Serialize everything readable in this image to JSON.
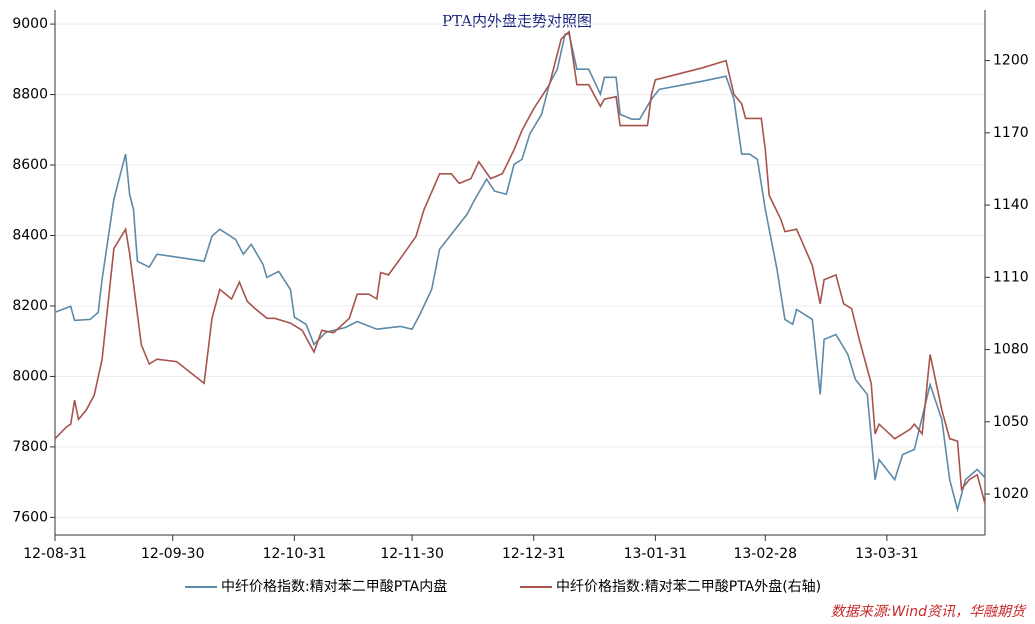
{
  "chart_data": {
    "type": "line",
    "title": "PTA内外盘走势对照图",
    "source": "数据来源:Wind资讯，华融期货",
    "xlim": [
      "12-08-31",
      "13-04-25"
    ],
    "xticks": [
      "12-08-31",
      "12-09-30",
      "12-10-31",
      "12-11-30",
      "12-12-31",
      "13-01-31",
      "13-02-28",
      "13-03-31"
    ],
    "ylim": [
      7550,
      9040
    ],
    "yticks": [
      7600,
      7800,
      8000,
      8200,
      8400,
      8600,
      8800,
      9000
    ],
    "y2lim": [
      1003,
      1221
    ],
    "y2ticks": [
      1020,
      1050,
      1080,
      1110,
      1140,
      1170,
      1200
    ],
    "grid": true,
    "legend": "bottom",
    "series": [
      {
        "name": "中纤价格指数:精对苯二甲酸PTA内盘",
        "color": "#5d8aa8",
        "x": [
          "12-08-31",
          "12-09-04",
          "12-09-05",
          "12-09-09",
          "12-09-11",
          "12-09-12",
          "12-09-15",
          "12-09-18",
          "12-09-19",
          "12-09-20",
          "12-09-21",
          "12-09-24",
          "12-09-26",
          "12-10-08",
          "12-10-10",
          "12-10-12",
          "12-10-16",
          "12-10-18",
          "12-10-20",
          "12-10-23",
          "12-10-24",
          "12-10-27",
          "12-10-30",
          "12-10-31",
          "12-11-03",
          "12-11-05",
          "12-11-08",
          "12-11-13",
          "12-11-16",
          "12-11-21",
          "12-11-27",
          "12-11-30",
          "12-12-02",
          "12-12-05",
          "12-12-07",
          "12-12-11",
          "12-12-14",
          "12-12-16",
          "12-12-19",
          "12-12-21",
          "12-12-24",
          "12-12-26",
          "12-12-28",
          "12-12-30",
          "13-01-02",
          "13-01-04",
          "13-01-06",
          "13-01-08",
          "13-01-09",
          "13-01-11",
          "13-01-14",
          "13-01-17",
          "13-01-18",
          "13-01-21",
          "13-01-22",
          "13-01-25",
          "13-01-27",
          "13-01-30",
          "13-02-01",
          "13-02-12",
          "13-02-18",
          "13-02-20",
          "13-02-22",
          "13-02-24",
          "13-02-26",
          "13-02-28",
          "13-03-03",
          "13-03-05",
          "13-03-07",
          "13-03-08",
          "13-03-12",
          "13-03-14",
          "13-03-15",
          "13-03-18",
          "13-03-21",
          "13-03-23",
          "13-03-26",
          "13-03-28",
          "13-03-29",
          "13-04-02",
          "13-04-04",
          "13-04-07",
          "13-04-11",
          "13-04-14",
          "13-04-16",
          "13-04-18",
          "13-04-20",
          "13-04-23",
          "13-04-25"
        ],
        "values": [
          8182,
          8199,
          8159,
          8162,
          8182,
          8276,
          8503,
          8631,
          8517,
          8474,
          8327,
          8310,
          8347,
          8327,
          8398,
          8418,
          8389,
          8347,
          8375,
          8318,
          8281,
          8298,
          8247,
          8168,
          8148,
          8091,
          8125,
          8139,
          8156,
          8134,
          8142,
          8134,
          8176,
          8247,
          8361,
          8418,
          8460,
          8503,
          8560,
          8526,
          8517,
          8602,
          8616,
          8688,
          8744,
          8830,
          8872,
          8972,
          8972,
          8872,
          8872,
          8801,
          8849,
          8849,
          8744,
          8730,
          8730,
          8787,
          8815,
          8838,
          8852,
          8787,
          8631,
          8631,
          8616,
          8474,
          8304,
          8162,
          8148,
          8190,
          8162,
          7949,
          8105,
          8119,
          8063,
          7991,
          7949,
          7707,
          7764,
          7707,
          7778,
          7793,
          7977,
          7878,
          7707,
          7622,
          7707,
          7736,
          7713
        ]
      },
      {
        "name": "中纤价格指数:精对苯二甲酸PTA外盘(右轴)",
        "color": "#a8534d",
        "axis": "y2",
        "x": [
          "12-08-31",
          "12-09-03",
          "12-09-04",
          "12-09-05",
          "12-09-06",
          "12-09-08",
          "12-09-10",
          "12-09-12",
          "12-09-15",
          "12-09-18",
          "12-09-19",
          "12-09-22",
          "12-09-24",
          "12-09-26",
          "12-10-01",
          "12-10-08",
          "12-10-10",
          "12-10-12",
          "12-10-15",
          "12-10-17",
          "12-10-19",
          "12-10-21",
          "12-10-24",
          "12-10-26",
          "12-10-30",
          "12-11-02",
          "12-11-05",
          "12-11-07",
          "12-11-10",
          "12-11-14",
          "12-11-16",
          "12-11-19",
          "12-11-21",
          "12-11-22",
          "12-11-24",
          "12-11-28",
          "12-12-01",
          "12-12-03",
          "12-12-07",
          "12-12-10",
          "12-12-12",
          "12-12-15",
          "12-12-17",
          "12-12-20",
          "12-12-23",
          "12-12-26",
          "12-12-28",
          "12-12-31",
          "13-01-04",
          "13-01-07",
          "13-01-09",
          "13-01-11",
          "13-01-14",
          "13-01-17",
          "13-01-18",
          "13-01-21",
          "13-01-22",
          "13-01-29",
          "13-01-30",
          "13-01-31",
          "13-02-12",
          "13-02-18",
          "13-02-20",
          "13-02-22",
          "13-02-23",
          "13-02-27",
          "13-02-28",
          "13-03-01",
          "13-03-04",
          "13-03-05",
          "13-03-08",
          "13-03-12",
          "13-03-14",
          "13-03-15",
          "13-03-18",
          "13-03-20",
          "13-03-22",
          "13-03-24",
          "13-03-27",
          "13-03-28",
          "13-03-29",
          "13-04-02",
          "13-04-04",
          "13-04-06",
          "13-04-07",
          "13-04-09",
          "13-04-11",
          "13-04-14",
          "13-04-16",
          "13-04-18",
          "13-04-19",
          "13-04-21",
          "13-04-23",
          "13-04-25"
        ],
        "values": [
          1043,
          1048,
          1049,
          1059,
          1051,
          1055,
          1061,
          1076,
          1122,
          1130,
          1120,
          1082,
          1074,
          1076,
          1075,
          1066,
          1093,
          1105,
          1101,
          1108,
          1100,
          1097,
          1093,
          1093,
          1091,
          1088,
          1079,
          1088,
          1087,
          1093,
          1103,
          1103,
          1101,
          1112,
          1111,
          1120,
          1127,
          1138,
          1153,
          1153,
          1149,
          1151,
          1158,
          1151,
          1153,
          1163,
          1171,
          1180,
          1190,
          1209,
          1212,
          1190,
          1190,
          1181,
          1184,
          1185,
          1173,
          1173,
          1186,
          1192,
          1197,
          1200,
          1186,
          1182,
          1176,
          1176,
          1163,
          1144,
          1134,
          1129,
          1130,
          1115,
          1099,
          1109,
          1111,
          1099,
          1097,
          1084,
          1066,
          1045,
          1049,
          1043,
          1045,
          1047,
          1049,
          1045,
          1078,
          1055,
          1043,
          1042,
          1022,
          1026,
          1028,
          1016
        ]
      }
    ]
  }
}
